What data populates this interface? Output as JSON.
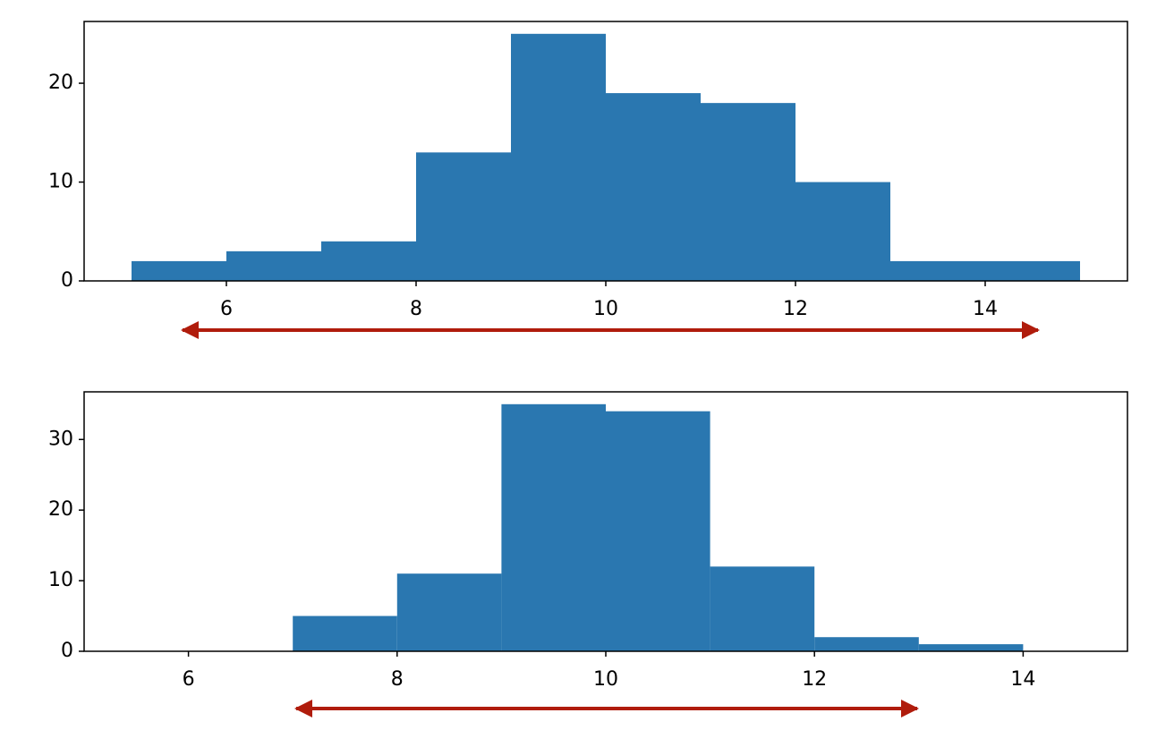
{
  "chart_data": [
    {
      "type": "histogram",
      "color": "#2a77b0",
      "bins": [
        5,
        6,
        7,
        8,
        9,
        10,
        11,
        12,
        13,
        14,
        15
      ],
      "values": [
        2,
        3,
        4,
        13,
        25,
        19,
        18,
        10,
        2,
        2
      ],
      "xlim": [
        4.5,
        15.5
      ],
      "xticks": [
        6,
        8,
        10,
        12,
        14
      ],
      "ylim": [
        0,
        26.25
      ],
      "yticks": [
        0,
        10,
        20
      ]
    },
    {
      "type": "histogram",
      "color": "#2a77b0",
      "bins": [
        6,
        7,
        8,
        9,
        10,
        11,
        12,
        13,
        14
      ],
      "values": [
        0,
        5,
        11,
        35,
        34,
        12,
        2,
        1
      ],
      "xlim": [
        5,
        15
      ],
      "xticks": [
        6,
        8,
        10,
        12,
        14
      ],
      "ylim": [
        0,
        36.75
      ],
      "yticks": [
        0,
        10,
        20,
        30
      ]
    }
  ]
}
